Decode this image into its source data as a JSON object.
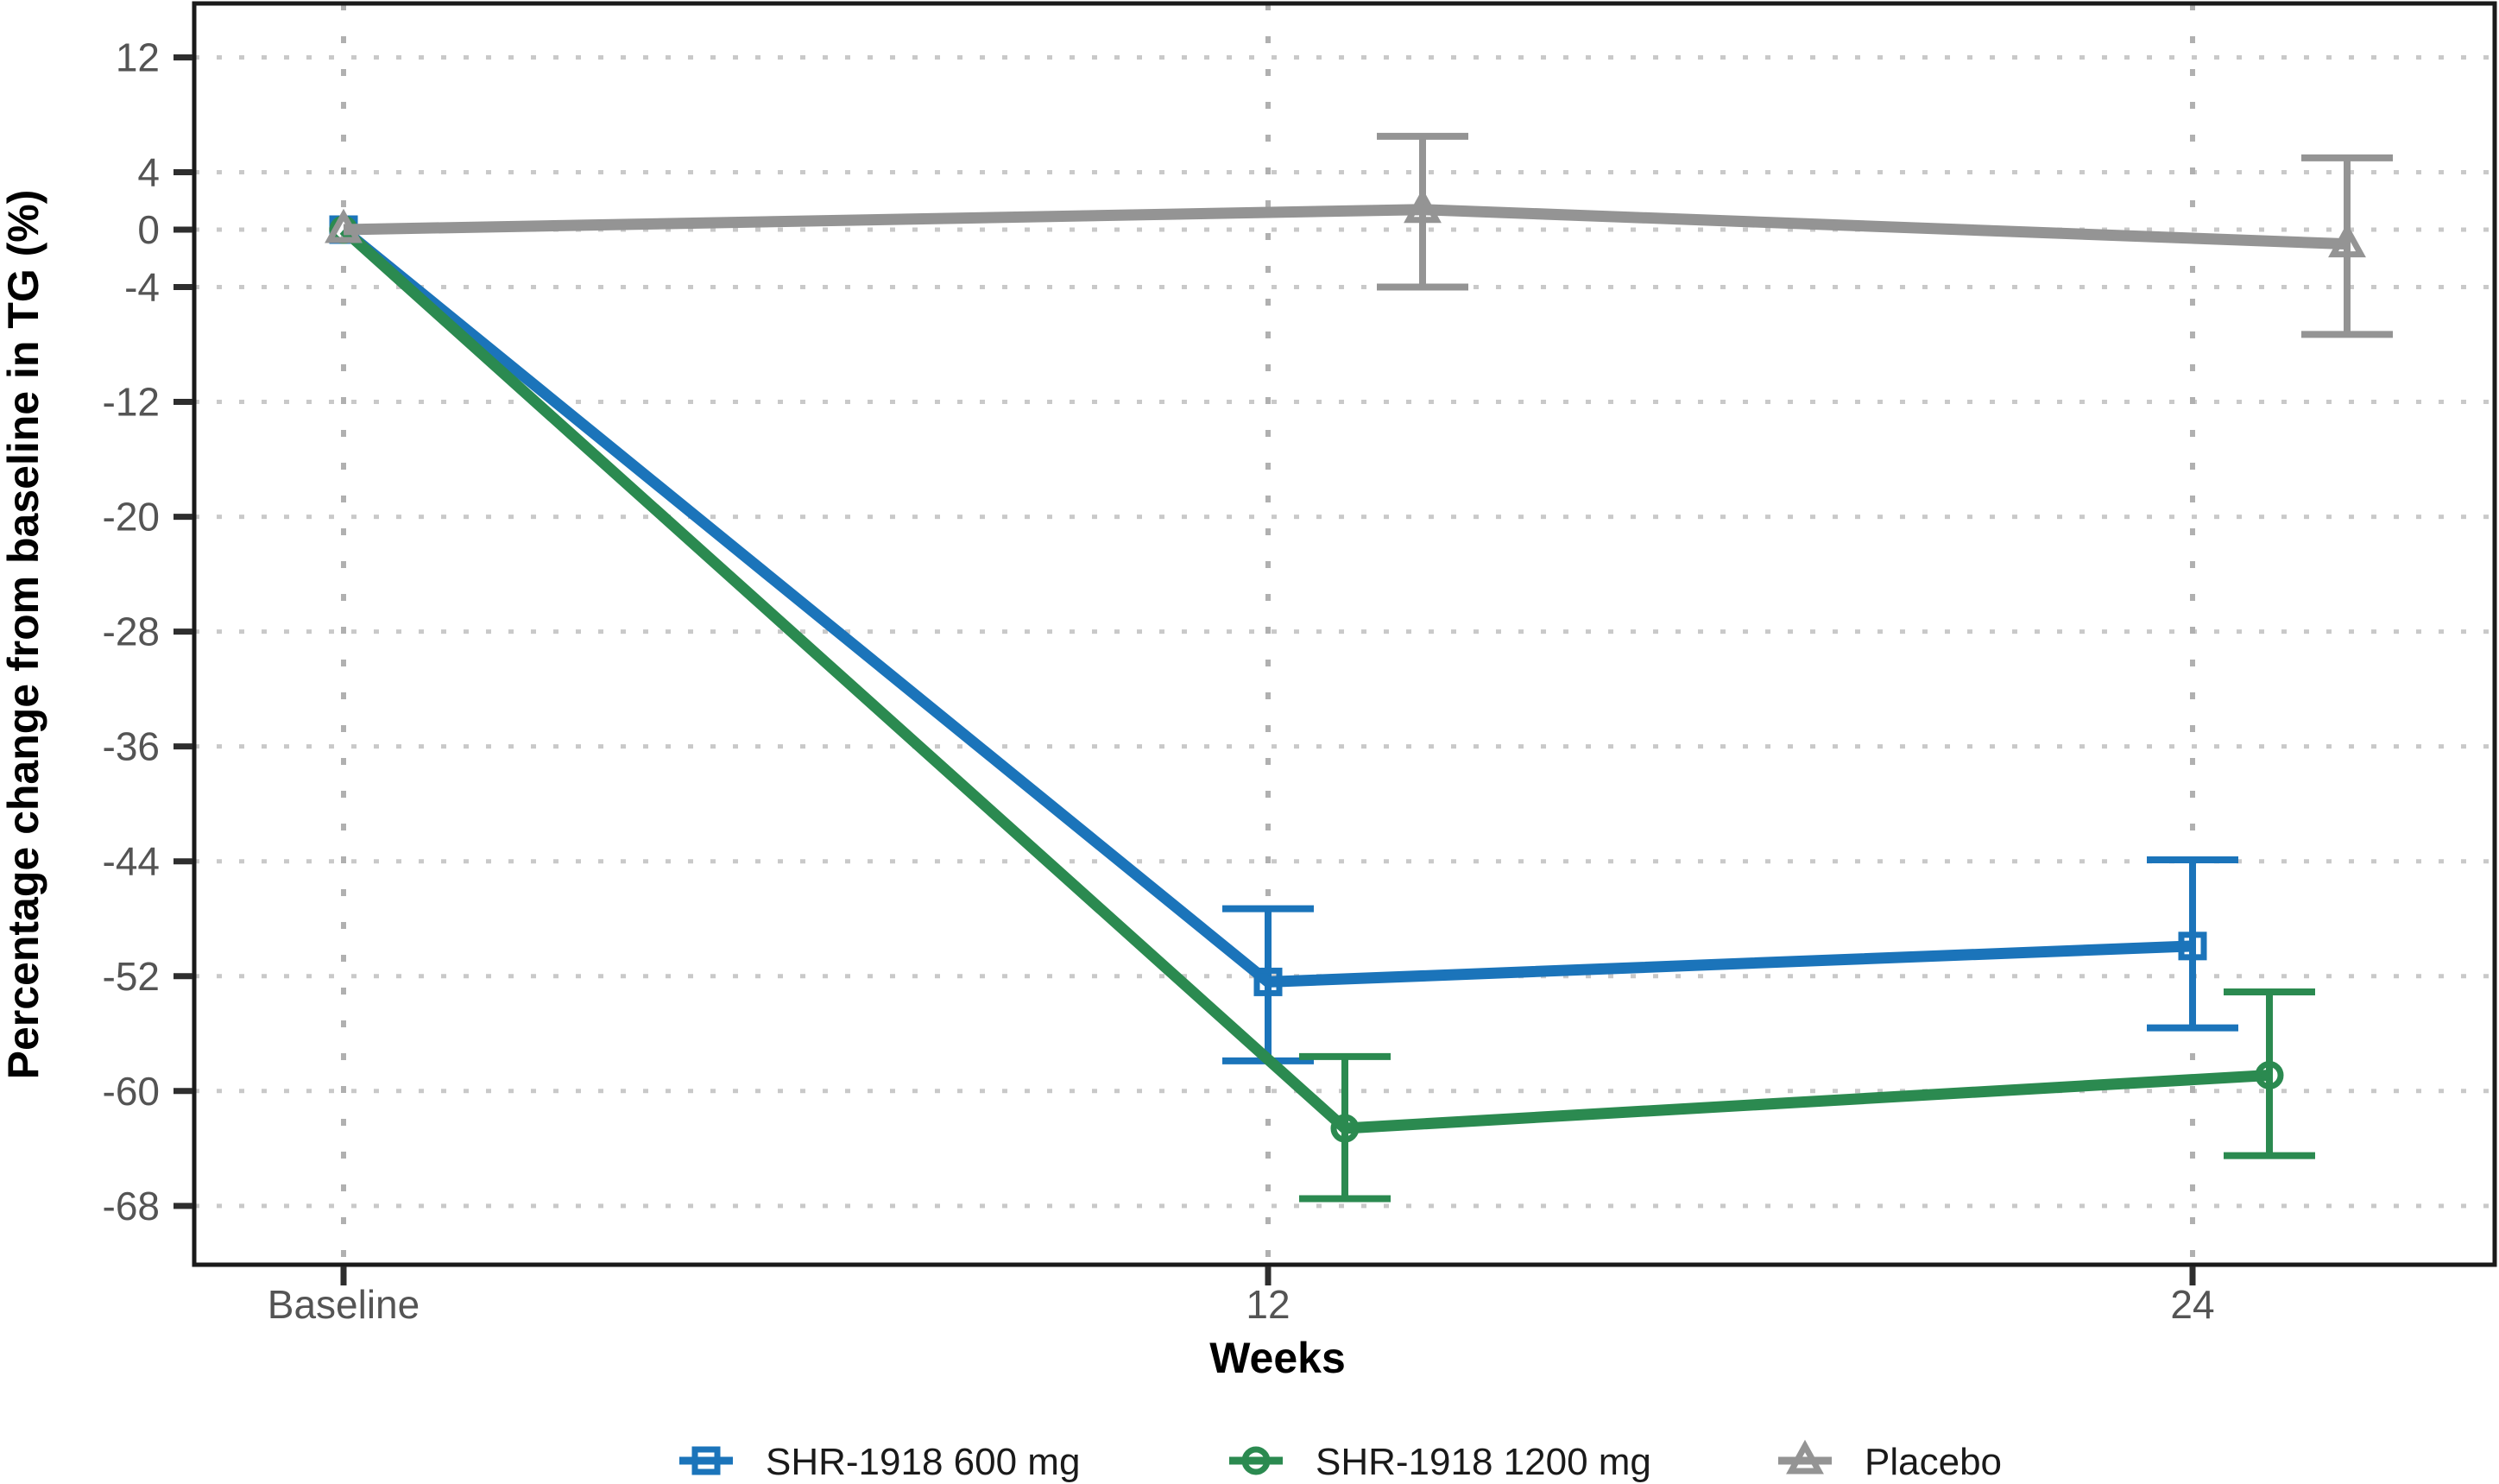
{
  "chart_data": {
    "type": "line",
    "title": "",
    "xlabel": "Weeks",
    "ylabel": "Percentage change from baseline in TG (%)",
    "x_categories": [
      "Baseline",
      "12",
      "24"
    ],
    "x_weeks": [
      0,
      12,
      24
    ],
    "yticks": [
      "12",
      "4",
      "0",
      "-4",
      "-12",
      "-20",
      "-28",
      "-36",
      "-44",
      "-52",
      "-60",
      "-68"
    ],
    "ytick_values": [
      12,
      4,
      0,
      -4,
      -12,
      -20,
      -28,
      -36,
      -44,
      -52,
      -60,
      -68
    ],
    "ylim": [
      15.8,
      -72.2
    ],
    "grid": "dotted",
    "legend_position": "bottom",
    "error_bars": true,
    "x_dodge_weeks": [
      0,
      1,
      2
    ],
    "series": [
      {
        "name": "SHR-1918 600 mg",
        "color": "#1b74ba",
        "marker": "square",
        "points": [
          {
            "x": "Baseline",
            "week": 0,
            "value": 0.0,
            "ci_low": null,
            "ci_high": null
          },
          {
            "x": "12",
            "week": 12,
            "value": -52.4,
            "ci_low": -57.9,
            "ci_high": -47.3
          },
          {
            "x": "24",
            "week": 24,
            "value": -49.9,
            "ci_low": -55.6,
            "ci_high": -43.9
          }
        ]
      },
      {
        "name": "SHR-1918 1200 mg",
        "color": "#2b8a50",
        "marker": "circle",
        "points": [
          {
            "x": "Baseline",
            "week": 0,
            "value": 0.0,
            "ci_low": null,
            "ci_high": null
          },
          {
            "x": "12",
            "week": 12,
            "value": -62.6,
            "ci_low": -67.5,
            "ci_high": -57.6
          },
          {
            "x": "24",
            "week": 24,
            "value": -58.9,
            "ci_low": -64.5,
            "ci_high": -53.1
          }
        ]
      },
      {
        "name": "Placebo",
        "color": "#949494",
        "marker": "triangle",
        "points": [
          {
            "x": "Baseline",
            "week": 0,
            "value": 0.0,
            "ci_low": null,
            "ci_high": null
          },
          {
            "x": "12",
            "week": 12,
            "value": 1.4,
            "ci_low": -4.0,
            "ci_high": 6.5
          },
          {
            "x": "24",
            "week": 24,
            "value": -1.0,
            "ci_low": -7.3,
            "ci_high": 5.0
          }
        ]
      }
    ]
  }
}
